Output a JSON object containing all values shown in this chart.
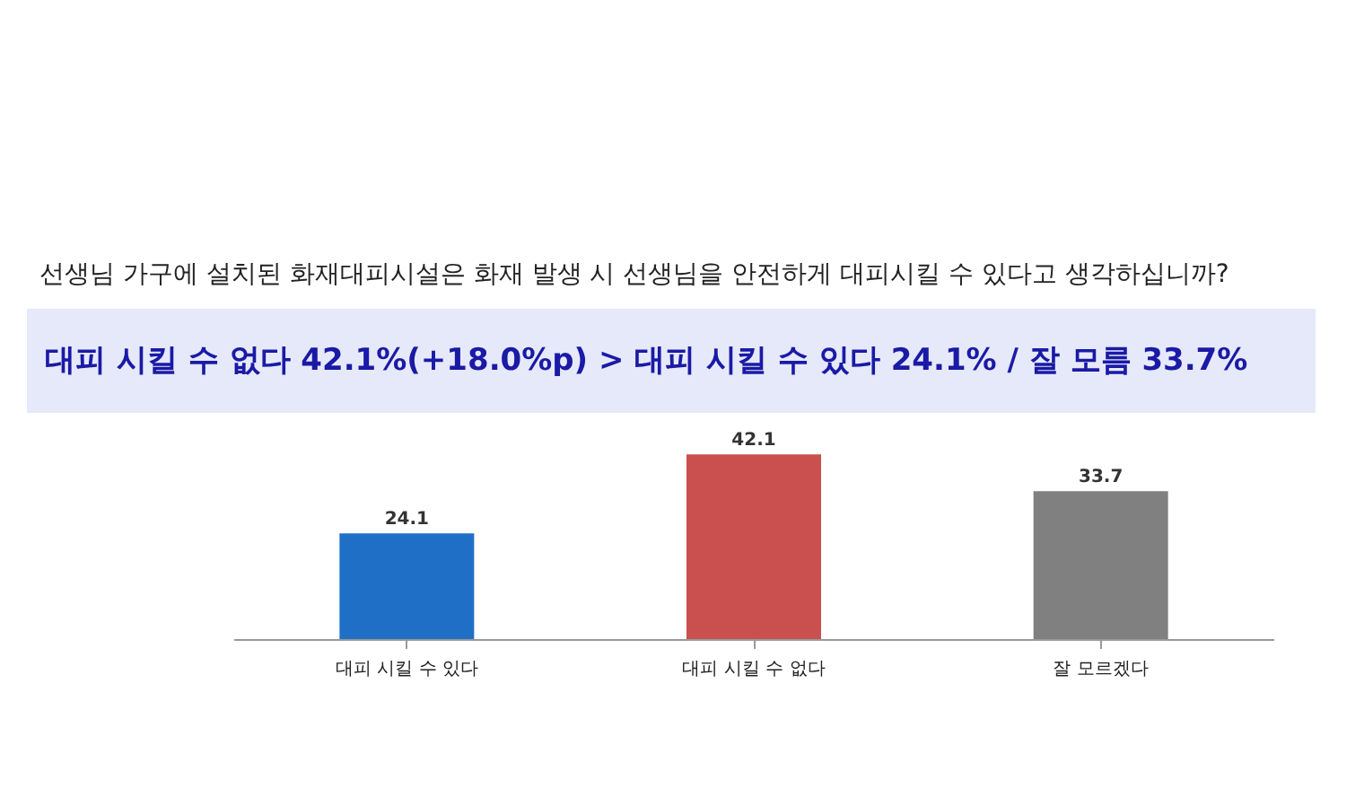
{
  "chart_data": {
    "type": "bar",
    "title": "선생님 가구에 설치된 화재대피시설은 화재 발생 시 선생님을 안전하게 대피시킬 수 있다고 생각하십니까?",
    "subtitle": "대피 시킬 수 없다 42.1%(+18.0%p) > 대피 시킬 수 있다 24.1% / 잘 모름 33.7%",
    "categories": [
      "대피 시킬 수 있다",
      "대피 시킬 수 없다",
      "잘 모르겠다"
    ],
    "values": [
      24.1,
      42.1,
      33.7
    ],
    "colors": [
      "#1f6fc6",
      "#c9504f",
      "#808080"
    ],
    "data_labels": true
  }
}
